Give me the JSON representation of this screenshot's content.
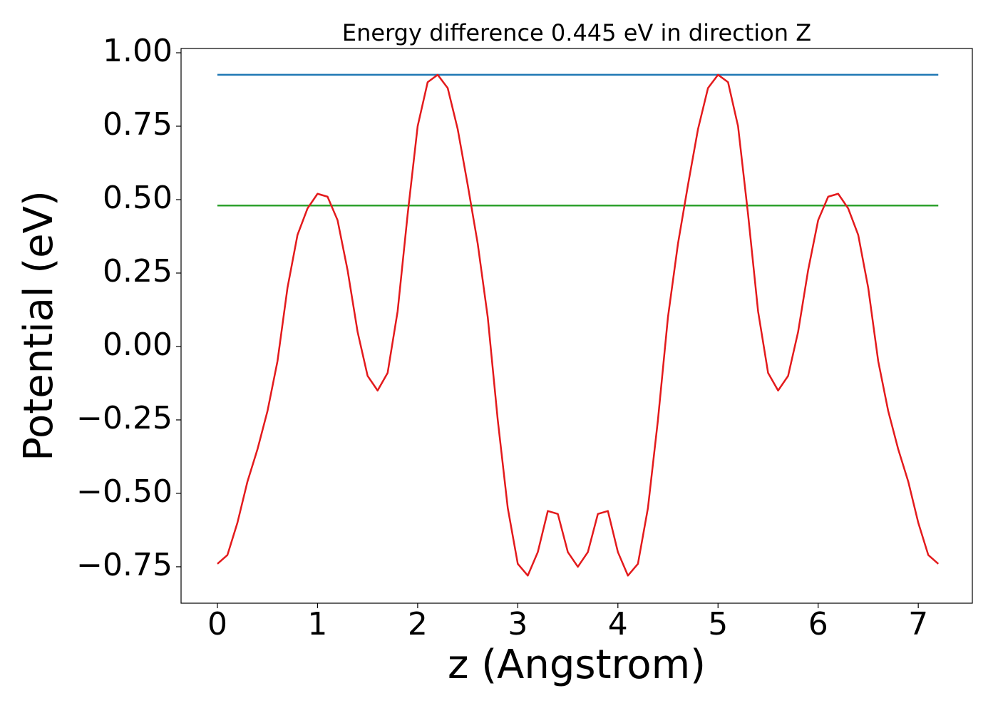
{
  "chart_data": {
    "type": "line",
    "title": "Energy difference 0.445 eV in direction Z",
    "xlabel": "z (Angstrom)",
    "ylabel": "Potential (eV)",
    "xlim": [
      -0.363,
      7.54
    ],
    "ylim": [
      -0.874,
      1.0146
    ],
    "xticks": [
      0,
      1,
      2,
      3,
      4,
      5,
      6,
      7
    ],
    "yticks": [
      {
        "value": -0.75,
        "label": "−0.75"
      },
      {
        "value": -0.5,
        "label": "−0.50"
      },
      {
        "value": -0.25,
        "label": "−0.25"
      },
      {
        "value": 0,
        "label": "0.00"
      },
      0.25,
      {
        "value": 0.5,
        "label": "0.50"
      },
      0.75,
      {
        "value": 1,
        "label": "1.00"
      }
    ],
    "grid": false,
    "series": [
      {
        "color": "#1f77b4",
        "x": [
          0,
          7.2
        ],
        "values": [
          0.925,
          0.925
        ]
      },
      {
        "color": "#2ca02c",
        "x": [
          0,
          7.2
        ],
        "values": [
          0.48,
          0.48
        ]
      },
      {
        "color": "#e31a1c",
        "x": [
          0,
          0.1,
          0.2,
          0.3,
          0.4,
          0.5,
          0.6,
          0.7,
          0.8,
          0.9,
          1.0,
          1.1,
          1.2,
          1.3,
          1.4,
          1.5,
          1.6,
          1.7,
          1.8,
          1.9,
          2.0,
          2.1,
          2.2,
          2.3,
          2.4,
          2.5,
          2.6,
          2.7,
          2.8,
          2.9,
          3.0,
          3.1,
          3.2,
          3.3,
          3.4,
          3.5,
          3.6,
          3.7,
          3.8,
          3.9,
          4.0,
          4.1,
          4.2,
          4.3,
          4.4,
          4.5,
          4.6,
          4.7,
          4.8,
          4.9,
          5.0,
          5.1,
          5.2,
          5.3,
          5.4,
          5.5,
          5.6,
          5.7,
          5.8,
          5.9,
          6.0,
          6.1,
          6.2,
          6.3,
          6.4,
          6.5,
          6.6,
          6.7,
          6.8,
          6.9,
          7.0,
          7.1,
          7.2
        ],
        "values": [
          -0.74,
          -0.71,
          -0.6,
          -0.46,
          -0.35,
          -0.22,
          -0.05,
          0.2,
          0.38,
          0.47,
          0.52,
          0.51,
          0.43,
          0.26,
          0.05,
          -0.1,
          -0.15,
          -0.09,
          0.12,
          0.45,
          0.75,
          0.9,
          0.925,
          0.88,
          0.74,
          0.55,
          0.35,
          0.1,
          -0.25,
          -0.55,
          -0.74,
          -0.78,
          -0.7,
          -0.56,
          -0.57,
          -0.7,
          -0.75,
          -0.7,
          -0.57,
          -0.56,
          -0.7,
          -0.78,
          -0.74,
          -0.55,
          -0.25,
          0.1,
          0.35,
          0.55,
          0.74,
          0.88,
          0.925,
          0.9,
          0.75,
          0.45,
          0.12,
          -0.09,
          -0.15,
          -0.1,
          0.05,
          0.26,
          0.43,
          0.51,
          0.52,
          0.47,
          0.38,
          0.2,
          -0.05,
          -0.22,
          -0.35,
          -0.46,
          -0.6,
          -0.71,
          -0.74
        ]
      }
    ]
  }
}
